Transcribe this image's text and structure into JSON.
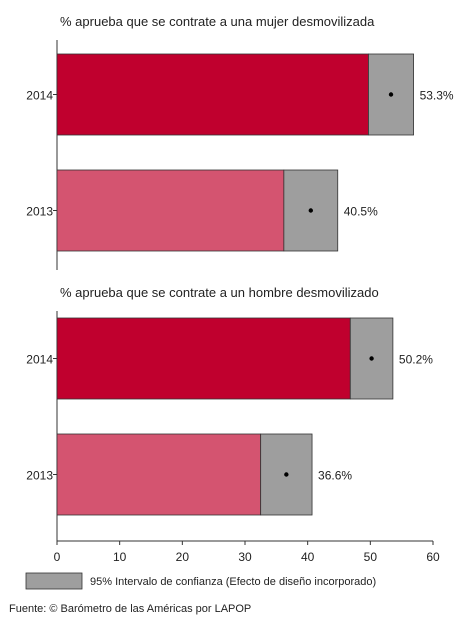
{
  "chart_data": [
    {
      "type": "bar",
      "orientation": "horizontal",
      "title": "% aprueba que se contrate a una mujer desmovilizada",
      "categories": [
        "2014",
        "2013"
      ],
      "values": [
        53.3,
        40.5
      ],
      "value_labels": [
        "53.3%",
        "40.5%"
      ],
      "ci": [
        [
          49.7,
          56.9
        ],
        [
          36.2,
          44.8
        ]
      ],
      "bar_colors": [
        "#c0002e",
        "#d45470"
      ],
      "ci_color": "#9e9e9e",
      "xlim": [
        0,
        60
      ]
    },
    {
      "type": "bar",
      "orientation": "horizontal",
      "title": "% aprueba que se contrate a un hombre desmovilizado",
      "categories": [
        "2014",
        "2013"
      ],
      "values": [
        50.2,
        36.6
      ],
      "value_labels": [
        "50.2%",
        "36.6%"
      ],
      "ci": [
        [
          46.8,
          53.6
        ],
        [
          32.5,
          40.7
        ]
      ],
      "bar_colors": [
        "#c0002e",
        "#d45470"
      ],
      "ci_color": "#9e9e9e",
      "xlim": [
        0,
        60
      ]
    }
  ],
  "x_axis": {
    "ticks": [
      0,
      10,
      20,
      30,
      40,
      50,
      60
    ]
  },
  "legend": {
    "label": "95% Intervalo de confianza (Efecto de diseño incorporado)"
  },
  "footer": {
    "source": "Fuente: © Barómetro de las Américas por LAPOP"
  }
}
